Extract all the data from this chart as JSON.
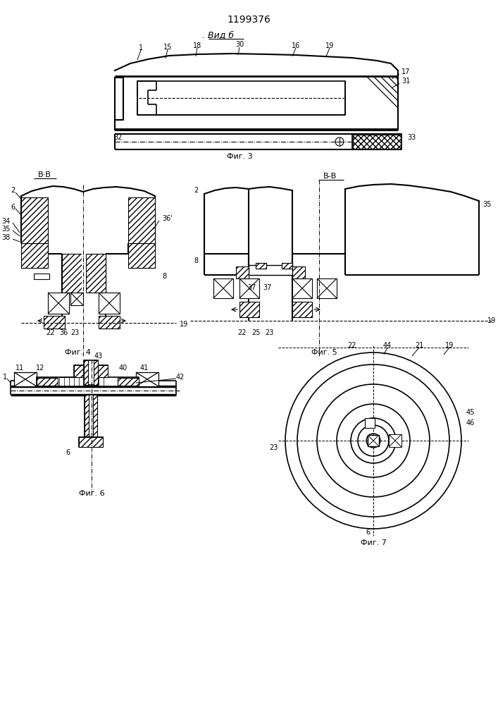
{
  "title": "1199376",
  "subtitle": ". Вид б",
  "fig3_caption": "Фиг. 3",
  "fig4_caption": "Фиг. 4",
  "fig5_caption": "Фиг. 5",
  "fig6_caption": "Фиг. 6",
  "fig7_caption": "Фиг. 7",
  "bg_color": "#ffffff",
  "line_color": "#000000"
}
